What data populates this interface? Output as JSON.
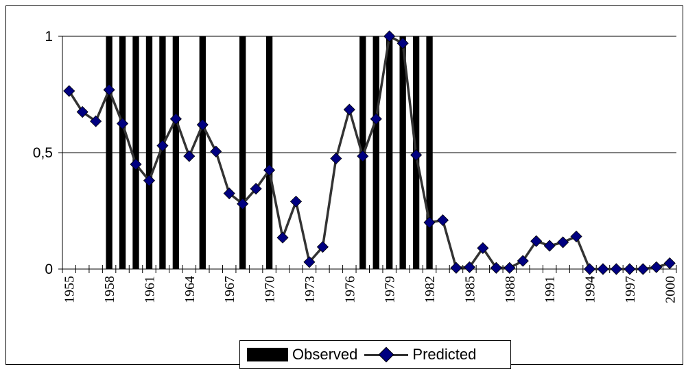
{
  "chart_data": {
    "type": "bar",
    "x": [
      1955,
      1956,
      1957,
      1958,
      1959,
      1960,
      1961,
      1962,
      1963,
      1964,
      1965,
      1966,
      1967,
      1968,
      1969,
      1970,
      1971,
      1972,
      1973,
      1974,
      1975,
      1976,
      1977,
      1978,
      1979,
      1980,
      1981,
      1982,
      1983,
      1984,
      1985,
      1986,
      1987,
      1988,
      1989,
      1990,
      1991,
      1992,
      1993,
      1994,
      1995,
      1996,
      1997,
      1998,
      1999,
      2000
    ],
    "xtick_labels": [
      "1955",
      "1958",
      "1961",
      "1964",
      "1967",
      "1970",
      "1973",
      "1976",
      "1979",
      "1982",
      "1985",
      "1988",
      "1991",
      "1994",
      "1997",
      "2000"
    ],
    "ytick_labels": [
      "0",
      "0,5",
      "1"
    ],
    "ylim": [
      0,
      1
    ],
    "yticks": [
      0,
      0.5,
      1
    ],
    "grid": "horizontal",
    "legend_position": "bottom",
    "series": [
      {
        "name": "Observed",
        "type": "bar",
        "color": "#000000",
        "values": [
          0,
          0,
          0,
          1,
          1,
          1,
          1,
          1,
          1,
          0,
          1,
          0,
          0,
          1,
          0,
          1,
          0,
          0,
          0,
          0,
          0,
          0,
          1,
          1,
          1,
          1,
          1,
          1,
          0,
          0,
          0,
          0,
          0,
          0,
          0,
          0,
          0,
          0,
          0,
          0,
          0,
          0,
          0,
          0,
          0,
          0
        ]
      },
      {
        "name": "Predicted",
        "type": "line",
        "color": "#000080",
        "line_color": "#333333",
        "values": [
          0.765,
          0.675,
          0.635,
          0.77,
          0.625,
          0.45,
          0.38,
          0.53,
          0.645,
          0.485,
          0.62,
          0.505,
          0.325,
          0.28,
          0.345,
          0.425,
          0.135,
          0.29,
          0.03,
          0.095,
          0.475,
          0.685,
          0.485,
          0.645,
          1.0,
          0.97,
          0.49,
          0.2,
          0.21,
          0.005,
          0.008,
          0.09,
          0.005,
          0.005,
          0.035,
          0.12,
          0.1,
          0.115,
          0.14,
          0.0,
          0.0,
          0.0,
          0.0,
          0.0,
          0.008,
          0.025
        ]
      }
    ]
  }
}
